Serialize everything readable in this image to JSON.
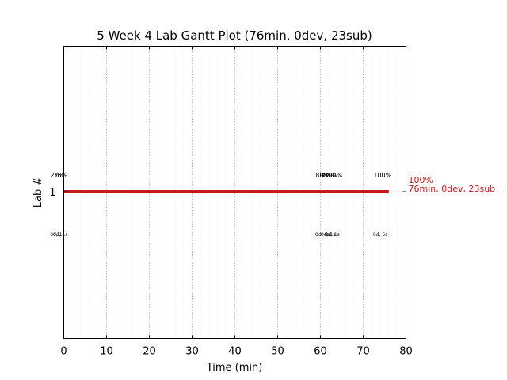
{
  "chart_data": {
    "type": "gantt",
    "title": "5 Week 4 Lab Gantt Plot (76min, 0dev, 23sub)",
    "xlabel": "Time (min)",
    "ylabel": "Lab #",
    "xlim": [
      0,
      80
    ],
    "xticks": [
      0,
      10,
      20,
      30,
      40,
      50,
      60,
      70,
      80
    ],
    "xtick_labels": [
      "0",
      "10",
      "20",
      "30",
      "40",
      "50",
      "60",
      "70",
      "80"
    ],
    "minor_grid_step": 2,
    "grid": true,
    "lanes": [
      {
        "label": "1",
        "bar": {
          "start": 0,
          "end": 76,
          "color": "#c8191e"
        },
        "end_label_line1": "100%",
        "end_label_line2": "76min, 0dev, 23sub",
        "end_label_color": "#c8191e",
        "markers_above": [
          {
            "x": -1.5,
            "text": "27%"
          },
          {
            "x": -0.8,
            "text": "76%"
          },
          {
            "x": 60.5,
            "text": "80%"
          },
          {
            "x": 61.5,
            "text": "98%"
          },
          {
            "x": 62.2,
            "text": "88%"
          },
          {
            "x": 63.0,
            "text": "100%"
          },
          {
            "x": 74.5,
            "text": "100%"
          }
        ],
        "markers_below": [
          {
            "x": -1.5,
            "text": "0d, 1s"
          },
          {
            "x": -0.8,
            "text": "0d, 1s"
          },
          {
            "x": 60.5,
            "text": "0d, 0s"
          },
          {
            "x": 61.8,
            "text": "0d, 1s"
          },
          {
            "x": 62.8,
            "text": "0d, 1s"
          },
          {
            "x": 74.0,
            "text": "0d, 5s"
          }
        ]
      }
    ]
  }
}
